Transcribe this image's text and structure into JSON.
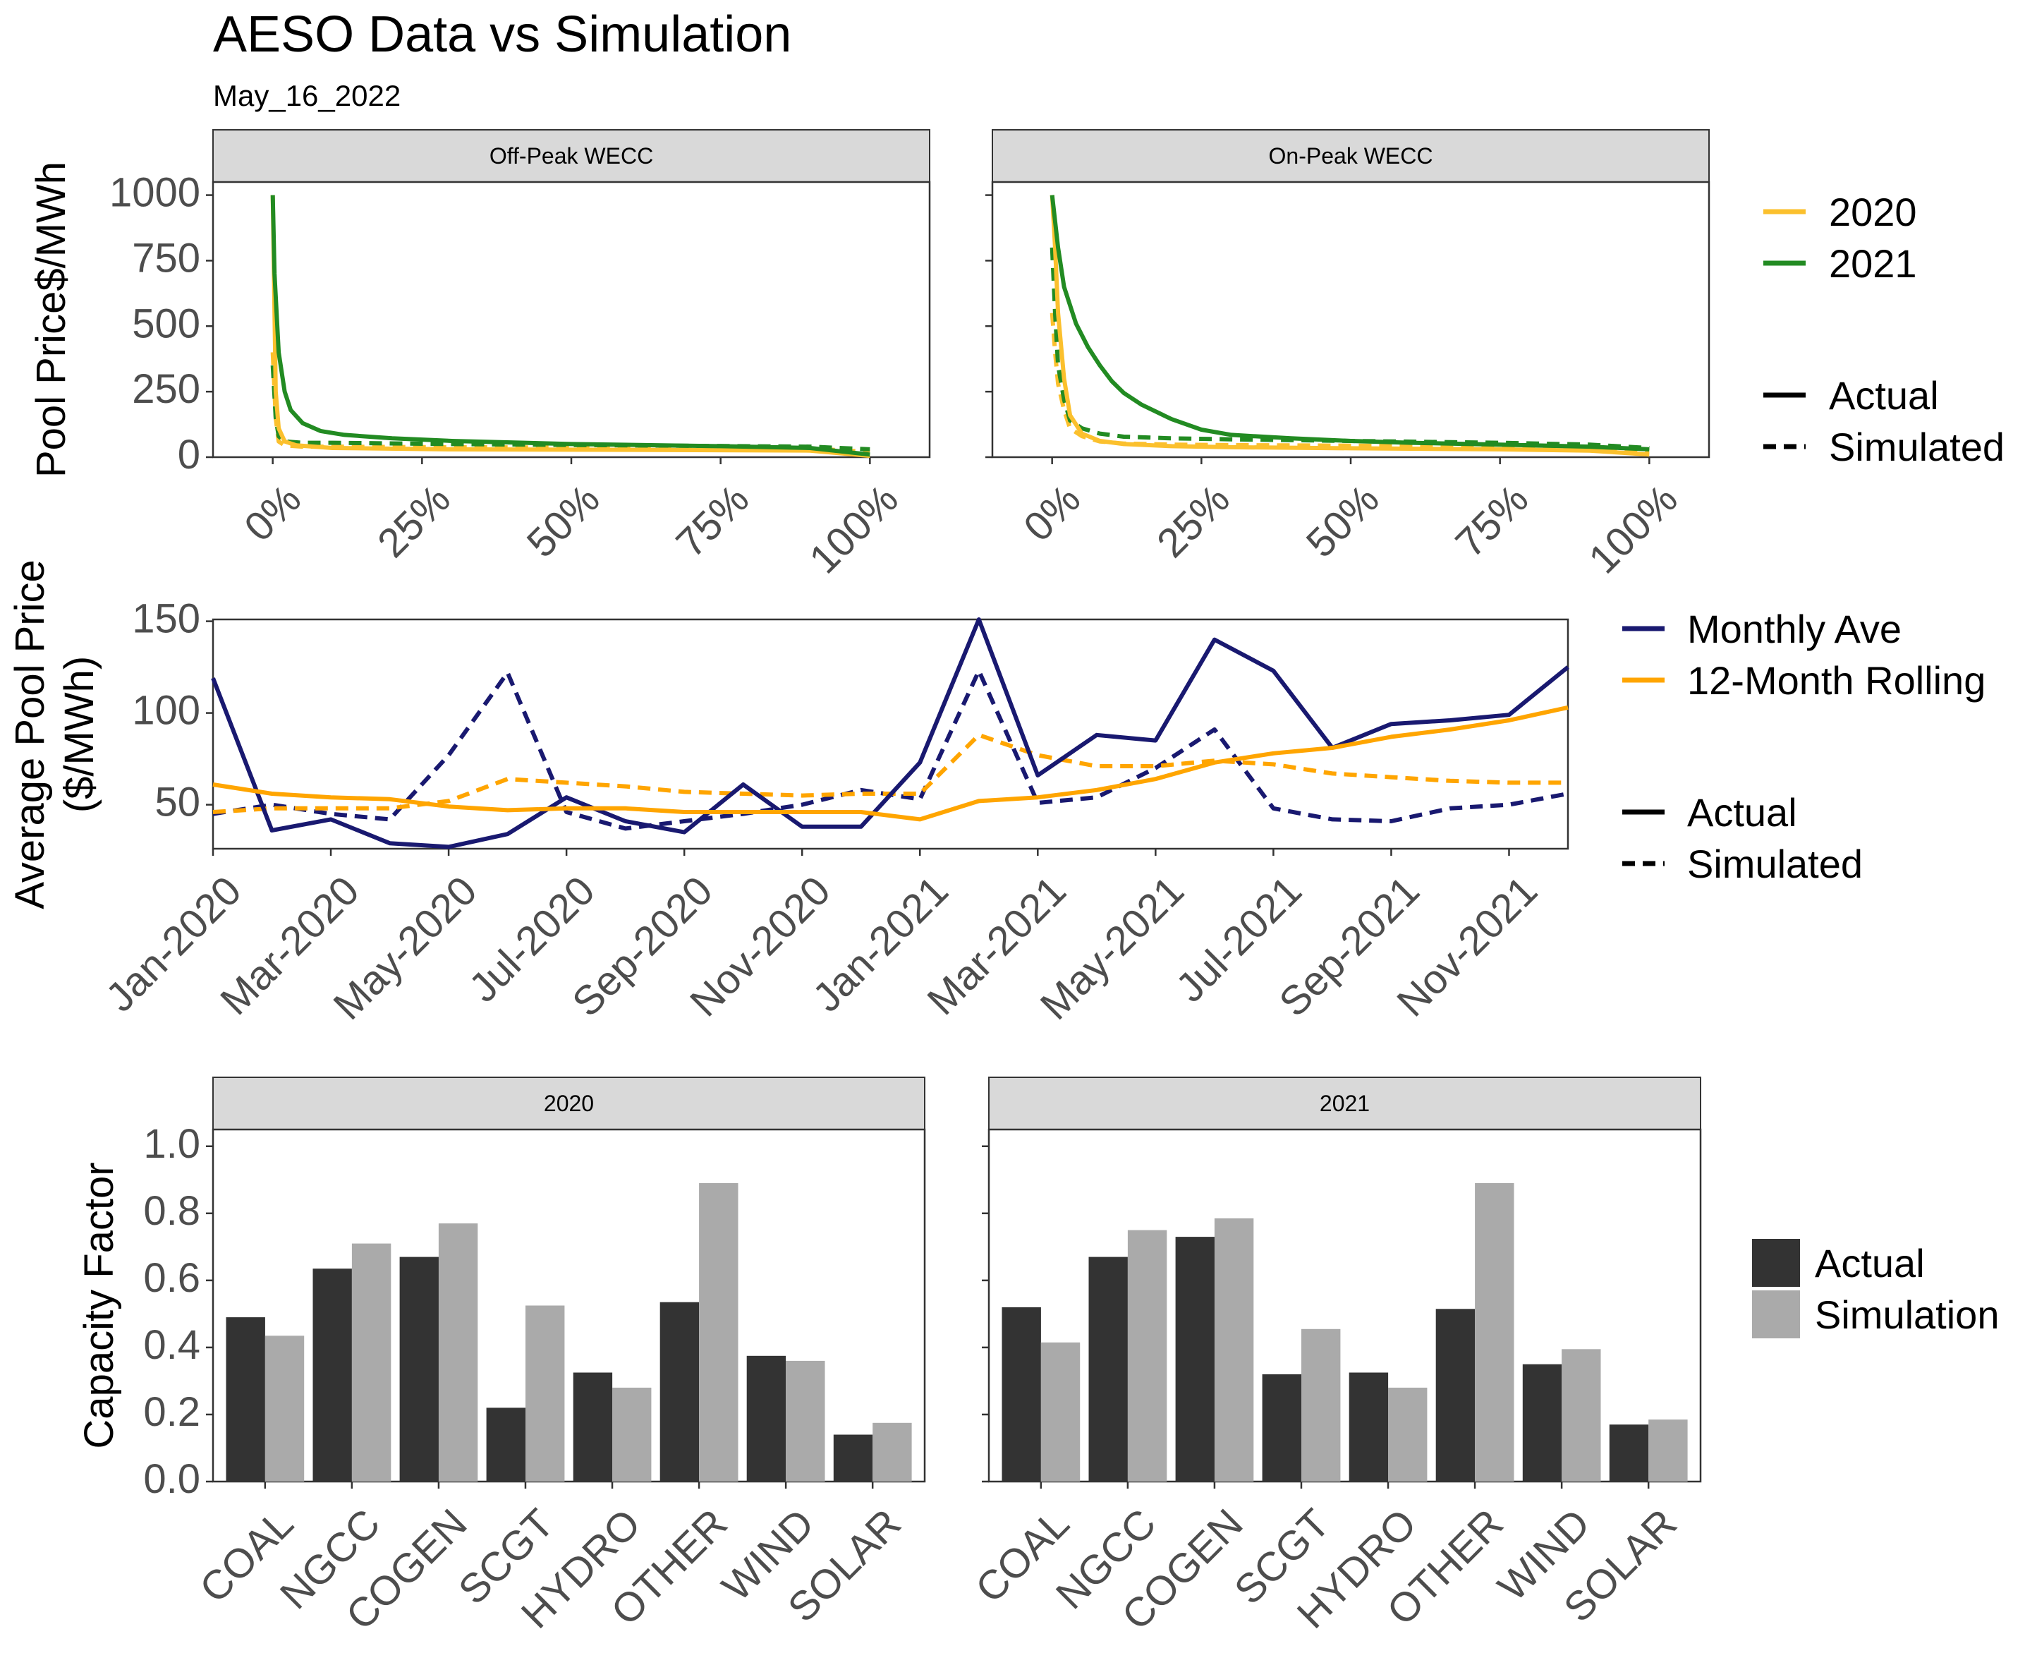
{
  "title": "AESO Data vs Simulation",
  "subtitle": "May_16_2022",
  "colors": {
    "y2020": "#FBC02D",
    "y2021": "#228B22",
    "monthly": "#191970",
    "rolling": "#FFA500",
    "actual_bar": "#333333",
    "sim_bar": "#AAAAAA",
    "strip_fill": "#D9D9D9"
  },
  "chart_data": [
    {
      "type": "line",
      "id": "duration",
      "ylabel": "Pool Price$/MWh",
      "ylim": [
        0,
        1050
      ],
      "yticks": [
        0,
        250,
        500,
        750,
        1000
      ],
      "xlim": [
        -0.1,
        1.1
      ],
      "xticks": [
        0,
        0.25,
        0.5,
        0.75,
        1.0
      ],
      "xtick_labels": [
        "0%",
        "25%",
        "50%",
        "75%",
        "100%"
      ],
      "panels": [
        {
          "label": "Off-Peak WECC",
          "series": [
            {
              "name": "2020",
              "kind": "Actual",
              "x": [
                0,
                0.005,
                0.01,
                0.02,
                0.04,
                0.1,
                0.3,
                0.6,
                0.9,
                1.0
              ],
              "values": [
                1000,
                250,
                110,
                60,
                45,
                35,
                30,
                28,
                25,
                5
              ]
            },
            {
              "name": "2020",
              "kind": "Simulated",
              "x": [
                0,
                0.005,
                0.01,
                0.02,
                0.05,
                0.1,
                0.3,
                0.6,
                0.9,
                1.0
              ],
              "values": [
                400,
                150,
                60,
                45,
                40,
                40,
                38,
                36,
                33,
                20
              ]
            },
            {
              "name": "2021",
              "kind": "Actual",
              "x": [
                0,
                0.003,
                0.01,
                0.02,
                0.03,
                0.05,
                0.08,
                0.12,
                0.2,
                0.3,
                0.5,
                0.75,
                0.9,
                1.0
              ],
              "values": [
                1000,
                700,
                400,
                250,
                180,
                130,
                100,
                85,
                72,
                62,
                50,
                42,
                35,
                10
              ]
            },
            {
              "name": "2021",
              "kind": "Simulated",
              "x": [
                0,
                0.005,
                0.01,
                0.02,
                0.05,
                0.1,
                0.3,
                0.6,
                0.9,
                1.0
              ],
              "values": [
                350,
                150,
                80,
                60,
                55,
                55,
                50,
                45,
                40,
                30
              ]
            }
          ]
        },
        {
          "label": "On-Peak WECC",
          "series": [
            {
              "name": "2020",
              "kind": "Actual",
              "x": [
                0,
                0.005,
                0.01,
                0.02,
                0.03,
                0.05,
                0.08,
                0.12,
                0.2,
                0.3,
                0.5,
                0.75,
                0.9,
                1.0
              ],
              "values": [
                1000,
                800,
                550,
                300,
                160,
                90,
                62,
                50,
                42,
                38,
                34,
                30,
                25,
                10
              ]
            },
            {
              "name": "2020",
              "kind": "Simulated",
              "x": [
                0,
                0.005,
                0.01,
                0.02,
                0.03,
                0.05,
                0.08,
                0.12,
                0.2,
                0.3,
                0.5,
                0.75,
                0.9,
                1.0
              ],
              "values": [
                550,
                400,
                280,
                180,
                110,
                80,
                60,
                52,
                48,
                46,
                44,
                40,
                35,
                25
              ]
            },
            {
              "name": "2021",
              "kind": "Actual",
              "x": [
                0,
                0.01,
                0.02,
                0.04,
                0.06,
                0.08,
                0.1,
                0.12,
                0.15,
                0.2,
                0.25,
                0.3,
                0.4,
                0.5,
                0.6,
                0.75,
                0.9,
                1.0
              ],
              "values": [
                1000,
                800,
                650,
                510,
                420,
                350,
                290,
                245,
                200,
                145,
                105,
                85,
                72,
                62,
                55,
                48,
                40,
                30
              ]
            },
            {
              "name": "2021",
              "kind": "Simulated",
              "x": [
                0,
                0.005,
                0.01,
                0.02,
                0.03,
                0.05,
                0.08,
                0.12,
                0.2,
                0.3,
                0.5,
                0.75,
                0.9,
                1.0
              ],
              "values": [
                800,
                550,
                350,
                220,
                140,
                110,
                90,
                78,
                72,
                68,
                62,
                55,
                48,
                35
              ]
            }
          ]
        }
      ],
      "legend": [
        {
          "group": "color",
          "entries": [
            "2020",
            "2021"
          ]
        },
        {
          "group": "linetype",
          "entries": [
            "Actual",
            "Simulated"
          ]
        }
      ]
    },
    {
      "type": "line",
      "id": "monthly",
      "ylabel": "Average Pool Price\n($/MWh)",
      "ylim": [
        26,
        151
      ],
      "yticks": [
        50,
        100,
        150
      ],
      "x": [
        "Jan-2020",
        "Feb-2020",
        "Mar-2020",
        "Apr-2020",
        "May-2020",
        "Jun-2020",
        "Jul-2020",
        "Aug-2020",
        "Sep-2020",
        "Oct-2020",
        "Nov-2020",
        "Dec-2020",
        "Jan-2021",
        "Feb-2021",
        "Mar-2021",
        "Apr-2021",
        "May-2021",
        "Jun-2021",
        "Jul-2021",
        "Aug-2021",
        "Sep-2021",
        "Oct-2021",
        "Nov-2021",
        "Dec-2021"
      ],
      "xtick_labels": [
        "Jan-2020",
        "Mar-2020",
        "May-2020",
        "Jul-2020",
        "Sep-2020",
        "Nov-2020",
        "Jan-2021",
        "Mar-2021",
        "May-2021",
        "Jul-2021",
        "Sep-2021",
        "Nov-2021"
      ],
      "series": [
        {
          "name": "Monthly Ave",
          "kind": "Actual",
          "values": [
            119,
            36,
            42,
            29,
            27,
            34,
            54,
            41,
            35,
            61,
            38,
            38,
            73,
            151,
            66,
            88,
            85,
            140,
            123,
            81,
            94,
            96,
            99,
            125
          ]
        },
        {
          "name": "Monthly Ave",
          "kind": "Simulated",
          "values": [
            45,
            50,
            45,
            42,
            77,
            122,
            46,
            37,
            41,
            45,
            50,
            58,
            53,
            123,
            51,
            54,
            70,
            91,
            48,
            42,
            41,
            48,
            50,
            56
          ]
        },
        {
          "name": "12-Month Rolling",
          "kind": "Actual",
          "values": [
            61,
            56,
            54,
            53,
            49,
            47,
            48,
            48,
            46,
            46,
            46,
            46,
            42,
            52,
            54,
            58,
            64,
            73,
            78,
            81,
            87,
            91,
            96,
            103
          ]
        },
        {
          "name": "12-Month Rolling",
          "kind": "Simulated",
          "values": [
            46,
            48,
            48,
            48,
            52,
            64,
            62,
            60,
            57,
            56,
            55,
            56,
            56,
            88,
            77,
            71,
            71,
            74,
            72,
            67,
            65,
            63,
            62,
            62
          ]
        }
      ],
      "legend": [
        {
          "group": "color",
          "entries": [
            "Monthly Ave",
            "12-Month Rolling"
          ]
        },
        {
          "group": "linetype",
          "entries": [
            "Actual",
            "Simulated"
          ]
        }
      ]
    },
    {
      "type": "bar",
      "id": "capacity",
      "ylabel": "Capacity Factor",
      "ylim": [
        0,
        1.05
      ],
      "yticks": [
        0.0,
        0.2,
        0.4,
        0.6,
        0.8,
        1.0
      ],
      "ytick_labels": [
        "0.0",
        "0.2",
        "0.4",
        "0.6",
        "0.8",
        "1.0"
      ],
      "categories": [
        "COAL",
        "NGCC",
        "COGEN",
        "SCGT",
        "HYDRO",
        "OTHER",
        "WIND",
        "SOLAR"
      ],
      "panels": [
        {
          "label": "2020",
          "series": [
            {
              "name": "Actual",
              "values": [
                0.49,
                0.635,
                0.67,
                0.22,
                0.325,
                0.535,
                0.375,
                0.14
              ]
            },
            {
              "name": "Simulation",
              "values": [
                0.435,
                0.71,
                0.77,
                0.525,
                0.28,
                0.89,
                0.36,
                0.175
              ]
            }
          ]
        },
        {
          "label": "2021",
          "series": [
            {
              "name": "Actual",
              "values": [
                0.52,
                0.67,
                0.73,
                0.32,
                0.325,
                0.515,
                0.35,
                0.17
              ]
            },
            {
              "name": "Simulation",
              "values": [
                0.415,
                0.75,
                0.785,
                0.455,
                0.28,
                0.89,
                0.395,
                0.185
              ]
            }
          ]
        }
      ],
      "legend": [
        {
          "group": "fill",
          "entries": [
            "Actual",
            "Simulation"
          ]
        }
      ]
    }
  ]
}
